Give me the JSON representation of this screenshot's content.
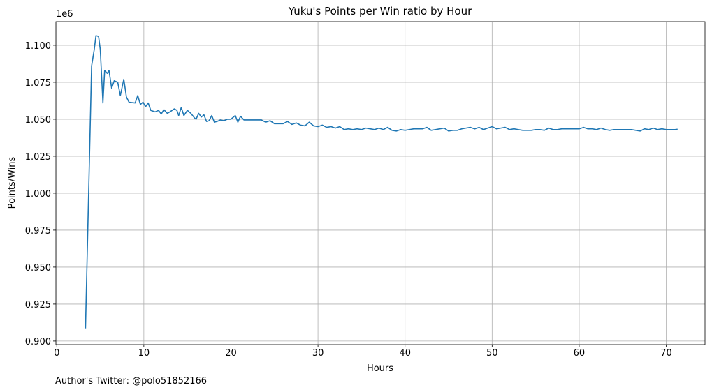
{
  "chart_data": {
    "type": "line",
    "title": "Yuku's Points per Win ratio by Hour",
    "xlabel": "Hours",
    "ylabel": "Points/Wins",
    "y_offset_label": "1e6",
    "annotation": "Author's Twitter: @polo51852166",
    "x": [
      3.3,
      4.0,
      4.3,
      4.5,
      4.8,
      5.0,
      5.3,
      5.5,
      5.8,
      6.0,
      6.3,
      6.6,
      7.0,
      7.3,
      7.7,
      8.0,
      8.3,
      9.0,
      9.3,
      9.6,
      9.9,
      10.2,
      10.5,
      10.8,
      11.3,
      11.7,
      12.0,
      12.3,
      12.7,
      13.0,
      13.5,
      13.8,
      14.0,
      14.3,
      14.6,
      15.0,
      15.4,
      15.8,
      16.0,
      16.3,
      16.6,
      16.9,
      17.2,
      17.5,
      17.8,
      18.1,
      18.4,
      18.8,
      19.2,
      19.6,
      20.0,
      20.5,
      20.8,
      21.1,
      21.5,
      22.0,
      22.5,
      23.0,
      23.5,
      24.0,
      24.5,
      25.0,
      26.0,
      26.5,
      27.0,
      27.5,
      28.0,
      28.5,
      29.0,
      29.5,
      30.0,
      30.5,
      31.0,
      31.5,
      32.0,
      32.5,
      33.0,
      33.5,
      34.0,
      34.5,
      35.0,
      35.5,
      36.0,
      36.5,
      37.0,
      37.5,
      38.0,
      38.5,
      39.0,
      39.5,
      40.0,
      40.5,
      41.0,
      41.5,
      42.0,
      42.5,
      43.0,
      43.5,
      44.0,
      44.5,
      45.0,
      45.5,
      46.0,
      46.5,
      47.0,
      47.5,
      48.0,
      48.5,
      49.0,
      49.5,
      50.0,
      50.5,
      51.0,
      51.5,
      52.0,
      52.5,
      53.0,
      53.5,
      54.0,
      54.5,
      55.0,
      55.5,
      56.0,
      56.5,
      57.0,
      57.5,
      58.0,
      58.5,
      59.0,
      59.5,
      60.0,
      60.5,
      61.0,
      61.5,
      62.0,
      62.5,
      63.0,
      63.5,
      64.0,
      64.5,
      65.0,
      65.5,
      66.0,
      66.5,
      67.0,
      67.5,
      68.0,
      68.5,
      69.0,
      69.5,
      70.0,
      70.5,
      71.0,
      71.3
    ],
    "series": [
      {
        "name": "Points/Wins",
        "color": "#1f77b4",
        "values": [
          908600,
          1086000,
          1097000,
          1106500,
          1106000,
          1097000,
          1061000,
          1083000,
          1081000,
          1083000,
          1071000,
          1076000,
          1075000,
          1066000,
          1077000,
          1065000,
          1061500,
          1061000,
          1066000,
          1060000,
          1061500,
          1058500,
          1061000,
          1056000,
          1055000,
          1056000,
          1053500,
          1056500,
          1054000,
          1055000,
          1057000,
          1056000,
          1052500,
          1058000,
          1052500,
          1056000,
          1054000,
          1051000,
          1050000,
          1054000,
          1051500,
          1053000,
          1048500,
          1049000,
          1052500,
          1048000,
          1048500,
          1049500,
          1049000,
          1050000,
          1050000,
          1052500,
          1048000,
          1052000,
          1049500,
          1049500,
          1049500,
          1049500,
          1049500,
          1048000,
          1049000,
          1047000,
          1047000,
          1048500,
          1046500,
          1047500,
          1046000,
          1045500,
          1048000,
          1045500,
          1045000,
          1046000,
          1044500,
          1045000,
          1044000,
          1045000,
          1043000,
          1043500,
          1043000,
          1043500,
          1043000,
          1044000,
          1043500,
          1043000,
          1044000,
          1043000,
          1044500,
          1042500,
          1042000,
          1043000,
          1042500,
          1043000,
          1043500,
          1043500,
          1043500,
          1044500,
          1042500,
          1043000,
          1043500,
          1044000,
          1042000,
          1042500,
          1042500,
          1043500,
          1044000,
          1044500,
          1043500,
          1044500,
          1043000,
          1044000,
          1045000,
          1043500,
          1044000,
          1044500,
          1043000,
          1043500,
          1043000,
          1042500,
          1042500,
          1042500,
          1043000,
          1043000,
          1042500,
          1044000,
          1043000,
          1043000,
          1043500,
          1043500,
          1043500,
          1043500,
          1043500,
          1044500,
          1043500,
          1043500,
          1043000,
          1044000,
          1043000,
          1042500,
          1043000,
          1043000,
          1043000,
          1043000,
          1043000,
          1042500,
          1042000,
          1043500,
          1043000,
          1044000,
          1043000,
          1043500,
          1043000,
          1043000,
          1043000,
          1043200
        ]
      }
    ],
    "xlim": [
      -0.1,
      74.45
    ],
    "xticks": [
      0,
      10,
      20,
      30,
      40,
      50,
      60,
      70
    ],
    "ylim": [
      897600,
      1116000
    ],
    "yticks": [
      {
        "value": 900000,
        "label": "0.900"
      },
      {
        "value": 925000,
        "label": "0.925"
      },
      {
        "value": 950000,
        "label": "0.950"
      },
      {
        "value": 975000,
        "label": "0.975"
      },
      {
        "value": 1000000,
        "label": "1.000"
      },
      {
        "value": 1025000,
        "label": "1.025"
      },
      {
        "value": 1050000,
        "label": "1.050"
      },
      {
        "value": 1075000,
        "label": "1.075"
      },
      {
        "value": 1100000,
        "label": "1.100"
      }
    ],
    "grid": true
  }
}
